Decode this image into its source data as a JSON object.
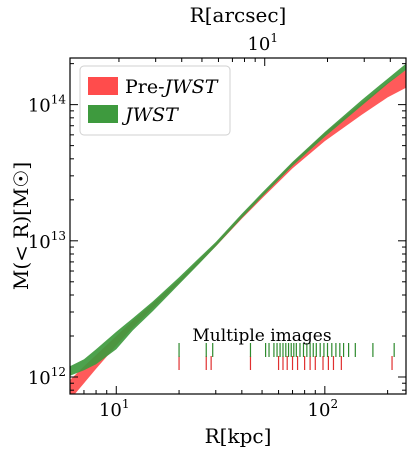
{
  "chart_data": {
    "type": "area",
    "xlabel": "R[kpc]",
    "ylabel": "M(< R)[M☉]",
    "top_xlabel": "R[arcsec]",
    "x_scale": "log",
    "y_scale": "log",
    "xlim": [
      6,
      245
    ],
    "ylim": [
      750000000000.0,
      220000000000000.0
    ],
    "x_ticks": [
      {
        "value": 10,
        "label": "10",
        "exp": "1"
      },
      {
        "value": 100,
        "label": "10",
        "exp": "2"
      }
    ],
    "y_ticks": [
      {
        "value": 1000000000000.0,
        "label": "10",
        "exp": "12"
      },
      {
        "value": 10000000000000.0,
        "label": "10",
        "exp": "13"
      },
      {
        "value": 100000000000000.0,
        "label": "10",
        "exp": "14"
      }
    ],
    "top_ticks": [
      {
        "value_kpc": 51.5,
        "label": "10",
        "exp": "1"
      }
    ],
    "legend": {
      "placement": "top-left",
      "entries": [
        {
          "prefix": "Pre-",
          "label": "JWST",
          "color": "#ff4c4c"
        },
        {
          "prefix": "",
          "label": "JWST",
          "color": "#3e9a3e"
        }
      ]
    },
    "series": [
      {
        "name": "Pre-JWST",
        "color": "#ff4c4c",
        "x": [
          6,
          7,
          8,
          10,
          12,
          15,
          20,
          25,
          30,
          40,
          50,
          70,
          100,
          150,
          200,
          245
        ],
        "lower": [
          680000000000.0,
          900000000000.0,
          1150000000000.0,
          1700000000000.0,
          2300000000000.0,
          3200000000000.0,
          4900000000000.0,
          6900000000000.0,
          9100000000000.0,
          14500000000000.0,
          20500000000000.0,
          34000000000000.0,
          54000000000000.0,
          84000000000000.0,
          113000000000000.0,
          133000000000000.0
        ],
        "upper": [
          950000000000.0,
          1200000000000.0,
          1450000000000.0,
          2000000000000.0,
          2600000000000.0,
          3500000000000.0,
          5200000000000.0,
          7300000000000.0,
          9600000000000.0,
          15500000000000.0,
          22000000000000.0,
          37500000000000.0,
          62000000000000.0,
          103000000000000.0,
          145000000000000.0,
          180000000000000.0
        ]
      },
      {
        "name": "JWST",
        "color": "#3e9a3e",
        "x": [
          6,
          7,
          8,
          10,
          12,
          15,
          20,
          25,
          30,
          40,
          50,
          70,
          100,
          150,
          200,
          245
        ],
        "lower": [
          1020000000000.0,
          1120000000000.0,
          1240000000000.0,
          1600000000000.0,
          2200000000000.0,
          3050000000000.0,
          4800000000000.0,
          6800000000000.0,
          9100000000000.0,
          14700000000000.0,
          21000000000000.0,
          35500000000000.0,
          58000000000000.0,
          98000000000000.0,
          142000000000000.0,
          180000000000000.0
        ],
        "upper": [
          1200000000000.0,
          1350000000000.0,
          1600000000000.0,
          2150000000000.0,
          2700000000000.0,
          3600000000000.0,
          5400000000000.0,
          7500000000000.0,
          9800000000000.0,
          15800000000000.0,
          22500000000000.0,
          38000000000000.0,
          63000000000000.0,
          108000000000000.0,
          155000000000000.0,
          200000000000000.0
        ]
      }
    ],
    "annotation": "Multiple images",
    "image_radii": {
      "pre_jwst": [
        20,
        27,
        28.5,
        44,
        60,
        63,
        66,
        70,
        74,
        80,
        85,
        90,
        98,
        104,
        110,
        120,
        210
      ],
      "jwst": [
        20,
        27,
        29,
        44,
        52,
        54,
        57,
        59,
        61,
        63,
        65,
        67,
        69,
        71,
        73,
        76,
        79,
        82,
        85,
        88,
        91,
        95,
        99,
        103,
        108,
        113,
        118,
        123,
        130,
        140,
        170,
        215
      ]
    }
  }
}
